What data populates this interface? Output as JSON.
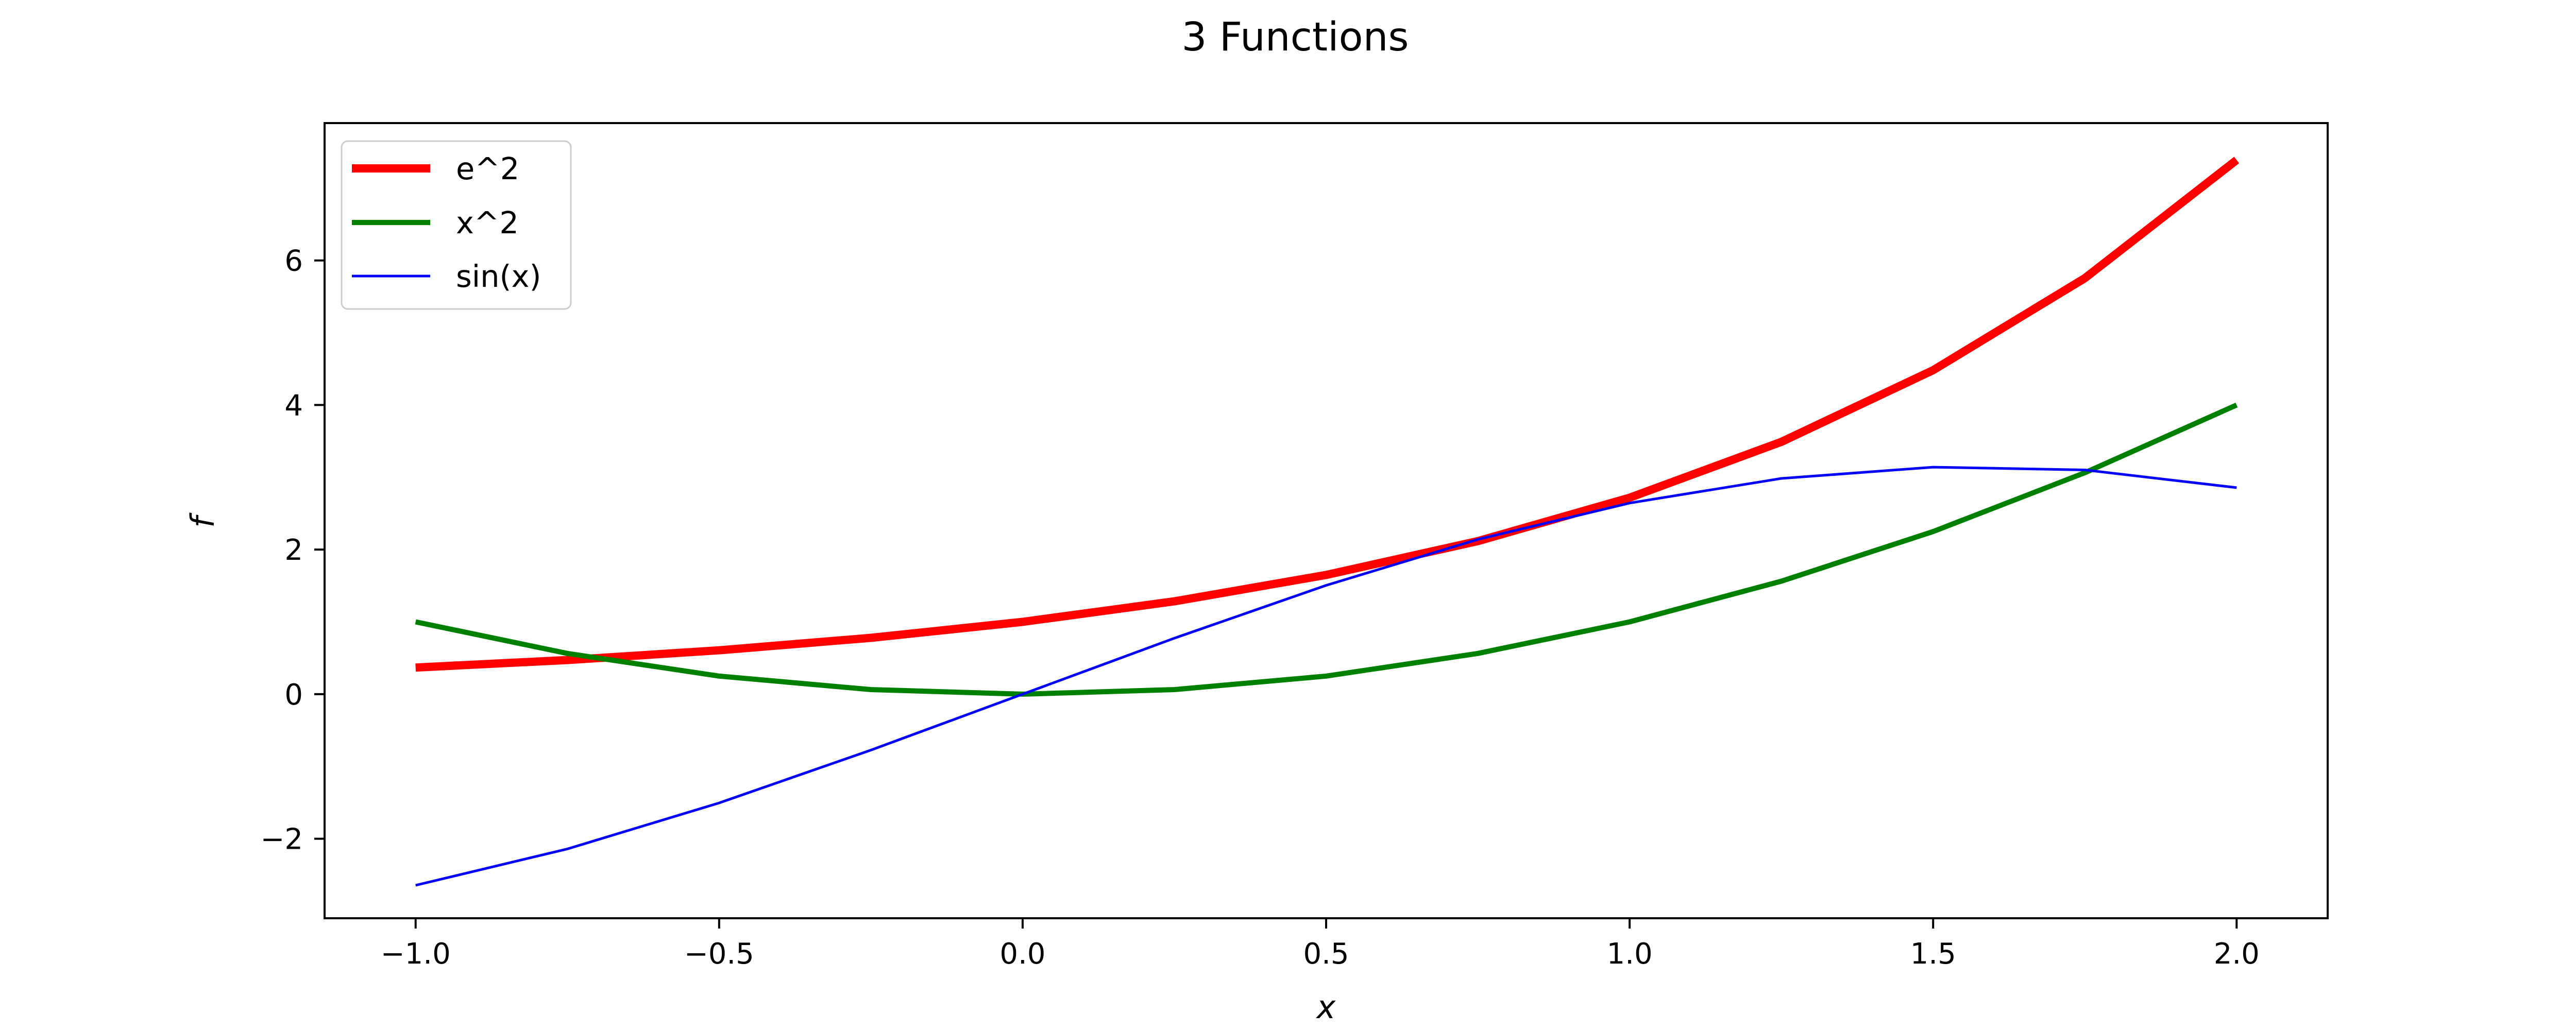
{
  "chart_data": {
    "type": "line",
    "title": "3 Functions",
    "xlabel": "x",
    "ylabel": "f",
    "xlim": [
      -1.15,
      2.15
    ],
    "ylim": [
      -3.1,
      7.9
    ],
    "xticks": [
      -1.0,
      -0.5,
      0.0,
      0.5,
      1.0,
      1.5,
      2.0
    ],
    "xtick_labels": [
      "−1.0",
      "−0.5",
      "0.0",
      "0.5",
      "1.0",
      "1.5",
      "2.0"
    ],
    "yticks": [
      -2,
      0,
      2,
      4,
      6
    ],
    "ytick_labels": [
      "−2",
      "0",
      "2",
      "4",
      "6"
    ],
    "grid": false,
    "legend_position": "upper-left",
    "series": [
      {
        "name": "e^2",
        "color": "#ff0000",
        "linewidth": 3,
        "x": [
          -1.0,
          -0.75,
          -0.5,
          -0.25,
          0.0,
          0.25,
          0.5,
          0.75,
          1.0,
          1.25,
          1.5,
          1.75,
          2.0
        ],
        "y": [
          0.368,
          0.472,
          0.607,
          0.779,
          1.0,
          1.284,
          1.649,
          2.117,
          2.718,
          3.49,
          4.482,
          5.755,
          7.389
        ]
      },
      {
        "name": "x^2",
        "color": "#008000",
        "linewidth": 2,
        "x": [
          -1.0,
          -0.75,
          -0.5,
          -0.25,
          0.0,
          0.25,
          0.5,
          0.75,
          1.0,
          1.25,
          1.5,
          1.75,
          2.0
        ],
        "y": [
          1.0,
          0.563,
          0.25,
          0.063,
          0.0,
          0.063,
          0.25,
          0.563,
          1.0,
          1.563,
          2.25,
          3.063,
          4.0
        ]
      },
      {
        "name": "sin(x)",
        "color": "#0000ff",
        "linewidth": 1,
        "x": [
          -1.0,
          -0.75,
          -0.5,
          -0.25,
          0.0,
          0.25,
          0.5,
          0.75,
          1.0,
          1.25,
          1.5,
          1.75,
          2.0
        ],
        "y": [
          -2.644,
          -2.141,
          -1.505,
          -0.774,
          0.0,
          0.774,
          1.505,
          2.141,
          2.644,
          2.984,
          3.14,
          3.102,
          2.857
        ]
      }
    ]
  }
}
